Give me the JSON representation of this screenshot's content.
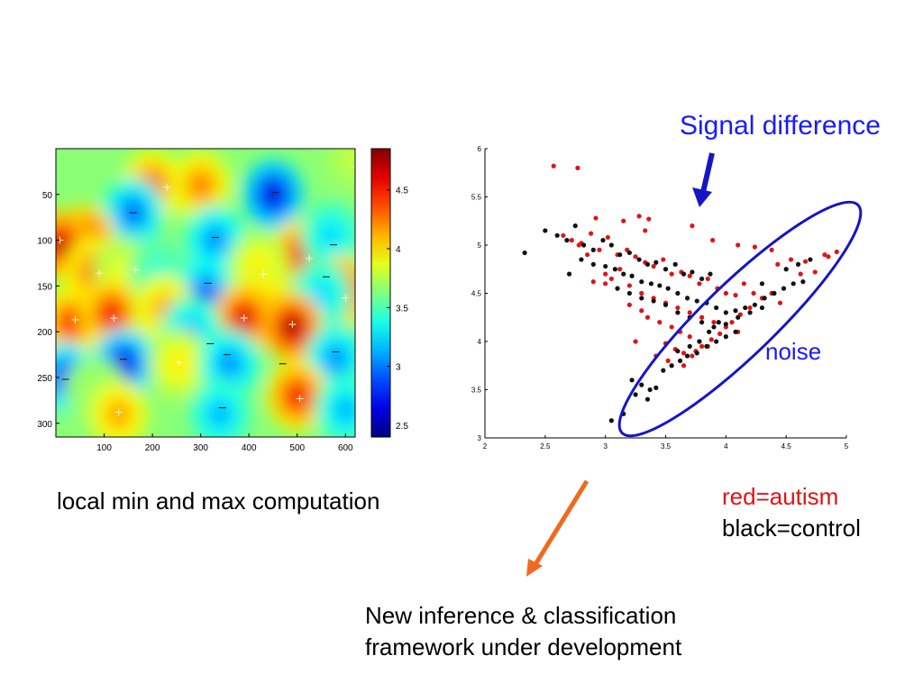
{
  "annotations": {
    "signal_difference": "Signal difference",
    "noise": "noise",
    "left_caption": "local min and max computation",
    "legend_red": "red=autism",
    "legend_black": "black=control",
    "bottom_caption_line1": "New inference & classification",
    "bottom_caption_line2": "framework under development",
    "colors": {
      "signal_text": "#1a1aff",
      "ellipse": "#1515c8",
      "signal_arrow": "#1515c8",
      "orange_arrow": "#f06a1e",
      "red_points": "#e01414",
      "black_points": "#111111"
    }
  },
  "chart_data": [
    {
      "type": "heatmap",
      "title": "",
      "xlabel": "",
      "ylabel": "",
      "xlim": [
        0,
        620
      ],
      "ylim": [
        0,
        315
      ],
      "y_inverted": true,
      "x_ticks": [
        100,
        200,
        300,
        400,
        500,
        600
      ],
      "y_ticks": [
        50,
        100,
        150,
        200,
        250,
        300
      ],
      "colorbar": {
        "colormap": "jet",
        "range": [
          2.4,
          4.85
        ],
        "ticks": [
          "2.5",
          "3",
          "3.5",
          "4",
          "4.5"
        ]
      },
      "blobs": [
        {
          "x": 450,
          "y": 50,
          "v": 2.5
        },
        {
          "x": 620,
          "y": 10,
          "v": 3.8
        },
        {
          "x": 200,
          "y": 40,
          "v": 4.4
        },
        {
          "x": 300,
          "y": 40,
          "v": 4.3
        },
        {
          "x": 160,
          "y": 70,
          "v": 2.9
        },
        {
          "x": 330,
          "y": 100,
          "v": 3.0
        },
        {
          "x": 60,
          "y": 100,
          "v": 4.7
        },
        {
          "x": 10,
          "y": 105,
          "v": 4.8
        },
        {
          "x": 510,
          "y": 115,
          "v": 4.6
        },
        {
          "x": 570,
          "y": 95,
          "v": 3.2
        },
        {
          "x": 80,
          "y": 135,
          "v": 4.4
        },
        {
          "x": 140,
          "y": 135,
          "v": 3.9
        },
        {
          "x": 215,
          "y": 135,
          "v": 3.4
        },
        {
          "x": 310,
          "y": 160,
          "v": 2.8
        },
        {
          "x": 420,
          "y": 130,
          "v": 4.0
        },
        {
          "x": 430,
          "y": 170,
          "v": 4.2
        },
        {
          "x": 590,
          "y": 155,
          "v": 4.7
        },
        {
          "x": 550,
          "y": 160,
          "v": 3.2
        },
        {
          "x": 30,
          "y": 190,
          "v": 4.5
        },
        {
          "x": 115,
          "y": 180,
          "v": 4.6
        },
        {
          "x": 225,
          "y": 175,
          "v": 4.2
        },
        {
          "x": 390,
          "y": 185,
          "v": 4.7
        },
        {
          "x": 490,
          "y": 195,
          "v": 4.85
        },
        {
          "x": 280,
          "y": 200,
          "v": 3.1
        },
        {
          "x": 140,
          "y": 235,
          "v": 2.6
        },
        {
          "x": 255,
          "y": 235,
          "v": 4.0
        },
        {
          "x": 360,
          "y": 235,
          "v": 3.0
        },
        {
          "x": 580,
          "y": 230,
          "v": 3.0
        },
        {
          "x": 20,
          "y": 250,
          "v": 2.7
        },
        {
          "x": 80,
          "y": 265,
          "v": 3.7
        },
        {
          "x": 500,
          "y": 270,
          "v": 4.6
        },
        {
          "x": 600,
          "y": 285,
          "v": 3.1
        },
        {
          "x": 130,
          "y": 290,
          "v": 4.2
        },
        {
          "x": 340,
          "y": 290,
          "v": 3.1
        }
      ],
      "extrema": [
        {
          "x": 230,
          "y": 42,
          "kind": "max"
        },
        {
          "x": 455,
          "y": 48,
          "kind": "min"
        },
        {
          "x": 620,
          "y": 20,
          "kind": "max"
        },
        {
          "x": 160,
          "y": 70,
          "kind": "min"
        },
        {
          "x": 330,
          "y": 97,
          "kind": "min"
        },
        {
          "x": 8,
          "y": 100,
          "kind": "max"
        },
        {
          "x": 525,
          "y": 120,
          "kind": "max"
        },
        {
          "x": 575,
          "y": 105,
          "kind": "min"
        },
        {
          "x": 90,
          "y": 136,
          "kind": "max"
        },
        {
          "x": 165,
          "y": 132,
          "kind": "max"
        },
        {
          "x": 430,
          "y": 137,
          "kind": "max"
        },
        {
          "x": 315,
          "y": 147,
          "kind": "min"
        },
        {
          "x": 560,
          "y": 140,
          "kind": "min"
        },
        {
          "x": 600,
          "y": 163,
          "kind": "max"
        },
        {
          "x": 40,
          "y": 187,
          "kind": "max"
        },
        {
          "x": 120,
          "y": 185,
          "kind": "max"
        },
        {
          "x": 390,
          "y": 185,
          "kind": "max"
        },
        {
          "x": 490,
          "y": 192,
          "kind": "max"
        },
        {
          "x": 320,
          "y": 213,
          "kind": "min"
        },
        {
          "x": 355,
          "y": 225,
          "kind": "min"
        },
        {
          "x": 140,
          "y": 230,
          "kind": "min"
        },
        {
          "x": 255,
          "y": 234,
          "kind": "max"
        },
        {
          "x": 470,
          "y": 235,
          "kind": "min"
        },
        {
          "x": 580,
          "y": 222,
          "kind": "min"
        },
        {
          "x": 20,
          "y": 252,
          "kind": "min"
        },
        {
          "x": 505,
          "y": 273,
          "kind": "max"
        },
        {
          "x": 345,
          "y": 283,
          "kind": "min"
        },
        {
          "x": 130,
          "y": 288,
          "kind": "max"
        }
      ]
    },
    {
      "type": "scatter",
      "title": "",
      "xlabel": "",
      "ylabel": "",
      "xlim": [
        2,
        5
      ],
      "ylim": [
        3,
        6
      ],
      "x_ticks": [
        "2",
        "2.5",
        "3",
        "3.5",
        "4",
        "4.5",
        "5"
      ],
      "y_ticks": [
        "3",
        "3.5",
        "4",
        "4.5",
        "5",
        "5.5",
        "6"
      ],
      "legend": "none",
      "series": [
        {
          "name": "red=autism",
          "color": "#e01414",
          "x": [
            2.57,
            2.77,
            2.92,
            3.15,
            3.28,
            3.36,
            3.33,
            3.72,
            3.89,
            4.1,
            4.24,
            4.38,
            4.43,
            4.54,
            4.62,
            4.66,
            4.74,
            4.82,
            4.85,
            4.92,
            2.65,
            2.72,
            2.8,
            2.88,
            2.95,
            3.02,
            3.1,
            3.18,
            3.25,
            3.33,
            3.4,
            3.48,
            3.55,
            3.63,
            3.7,
            3.78,
            3.85,
            3.93,
            4.0,
            4.08,
            4.15,
            4.23,
            4.3,
            4.38,
            4.45,
            2.9,
            3.0,
            3.1,
            3.2,
            3.3,
            3.4,
            3.5,
            3.6,
            3.7,
            3.8,
            3.9,
            4.0,
            4.1,
            3.2,
            3.3,
            3.35,
            3.45,
            3.55,
            3.62,
            3.7,
            3.78,
            3.85,
            3.5,
            3.58,
            3.65,
            3.72,
            3.8,
            3.88,
            3.95,
            4.05,
            4.12,
            4.2,
            3.0,
            3.05,
            3.12,
            2.85,
            2.78,
            3.25,
            3.42,
            3.52,
            3.65,
            3.75
          ],
          "y": [
            5.82,
            5.8,
            5.28,
            5.25,
            5.3,
            5.27,
            5.15,
            5.2,
            5.05,
            5.0,
            4.98,
            4.95,
            4.8,
            4.85,
            4.7,
            4.83,
            4.72,
            4.9,
            4.88,
            4.93,
            5.1,
            5.05,
            5.02,
            5.12,
            4.95,
            5.08,
            4.9,
            4.95,
            4.88,
            4.82,
            4.78,
            4.85,
            4.7,
            4.72,
            4.68,
            4.6,
            4.65,
            4.55,
            4.5,
            4.48,
            4.6,
            4.5,
            4.45,
            4.5,
            4.4,
            4.62,
            4.6,
            4.55,
            4.58,
            4.5,
            4.45,
            4.4,
            4.35,
            4.3,
            4.25,
            4.2,
            4.15,
            4.1,
            4.38,
            4.32,
            4.25,
            4.2,
            4.15,
            4.1,
            4.05,
            4.0,
            3.95,
            3.98,
            3.92,
            3.88,
            3.85,
            3.95,
            4.02,
            4.08,
            4.2,
            4.28,
            4.35,
            4.7,
            4.65,
            4.75,
            4.9,
            5.0,
            4.0,
            3.85,
            3.8,
            3.75,
            3.9
          ]
        },
        {
          "name": "black=control",
          "color": "#111111",
          "x": [
            2.33,
            2.5,
            2.6,
            2.68,
            2.75,
            2.82,
            2.9,
            2.98,
            3.05,
            3.12,
            3.2,
            3.28,
            3.35,
            3.42,
            3.5,
            3.58,
            3.65,
            3.72,
            3.8,
            3.87,
            2.7,
            2.8,
            2.9,
            3.0,
            3.08,
            3.15,
            3.22,
            3.3,
            3.38,
            3.45,
            3.52,
            3.6,
            3.68,
            3.76,
            3.84,
            3.92,
            4.0,
            4.08,
            4.16,
            4.24,
            4.32,
            4.4,
            4.48,
            4.56,
            4.64,
            3.1,
            3.2,
            3.3,
            3.4,
            3.5,
            3.6,
            3.7,
            3.8,
            3.9,
            4.0,
            4.1,
            4.2,
            4.3,
            4.4,
            3.6,
            3.68,
            3.76,
            3.84,
            3.92,
            4.0,
            4.08,
            3.22,
            3.3,
            3.37,
            3.42,
            3.15,
            3.05,
            3.25,
            3.35,
            3.48,
            3.55,
            3.62,
            3.7,
            3.78,
            3.86,
            3.94,
            4.3,
            4.5,
            4.6,
            4.7
          ],
          "y": [
            4.92,
            5.15,
            5.1,
            5.05,
            5.2,
            5.0,
            4.95,
            5.05,
            5.0,
            4.9,
            4.92,
            4.85,
            4.8,
            4.82,
            4.75,
            4.8,
            4.7,
            4.72,
            4.65,
            4.7,
            4.7,
            4.85,
            4.8,
            4.78,
            4.75,
            4.7,
            4.68,
            4.62,
            4.6,
            4.58,
            4.55,
            4.5,
            4.45,
            4.42,
            4.4,
            4.35,
            4.3,
            4.32,
            4.35,
            4.38,
            4.45,
            4.5,
            4.55,
            4.6,
            4.62,
            4.55,
            4.5,
            4.45,
            4.42,
            4.38,
            4.3,
            4.25,
            4.2,
            4.15,
            4.18,
            4.25,
            4.3,
            4.35,
            4.5,
            3.9,
            3.85,
            3.88,
            3.95,
            4.0,
            4.05,
            4.1,
            3.6,
            3.55,
            3.5,
            3.52,
            3.25,
            3.18,
            3.45,
            3.4,
            3.7,
            3.75,
            3.8,
            3.95,
            4.0,
            4.1,
            4.2,
            4.6,
            4.75,
            4.8,
            4.85
          ]
        }
      ]
    }
  ]
}
